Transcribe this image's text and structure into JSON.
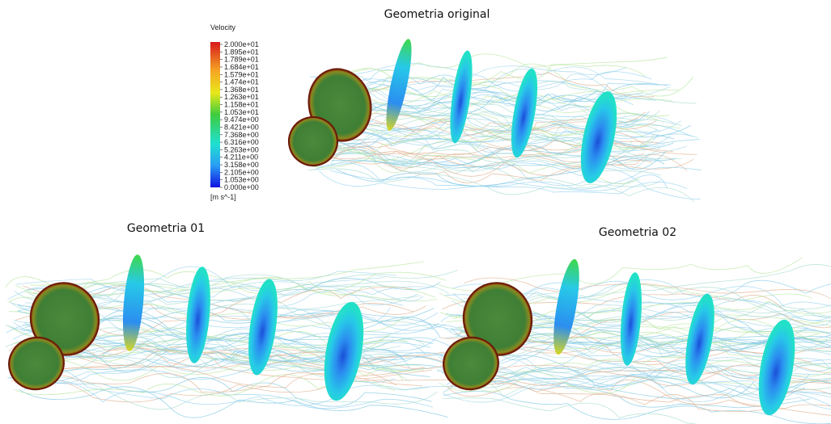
{
  "figure": {
    "titles": [
      "Geometria original",
      "Geometria 01",
      "Geometria 02"
    ],
    "legend": {
      "title": "Velocity",
      "labels": [
        "2.000e+01",
        "1.895e+01",
        "1.789e+01",
        "1.684e+01",
        "1.579e+01",
        "1.474e+01",
        "1.368e+01",
        "1.263e+01",
        "1.158e+01",
        "1.053e+01",
        "9.474e+00",
        "8.421e+00",
        "7.368e+00",
        "6.316e+00",
        "5.263e+00",
        "4.211e+00",
        "3.158e+00",
        "2.105e+00",
        "1.053e+00",
        "0.000e+00"
      ],
      "unit": "[m s^-1]"
    }
  }
}
